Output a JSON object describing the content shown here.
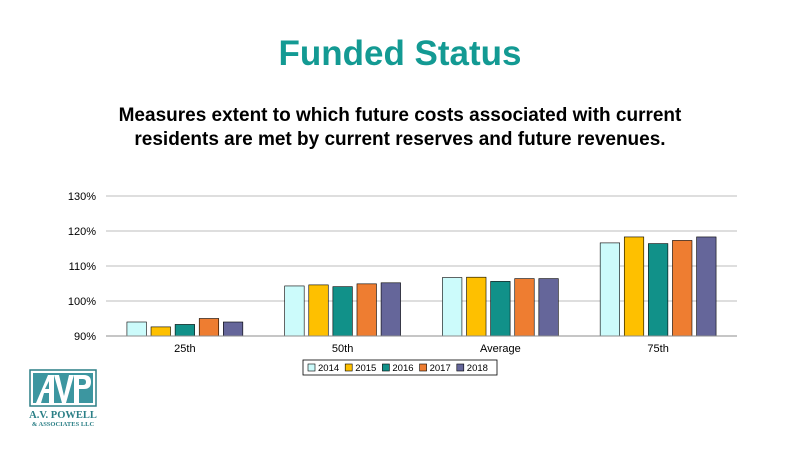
{
  "page": {
    "title": "Funded Status",
    "subtitle_line1": "Measures extent to which future costs associated with current",
    "subtitle_line2": "residents are met by current reserves and future revenues."
  },
  "logo": {
    "line1": "A.V. POWELL",
    "line2": "& ASSOCIATES LLC",
    "color": "#2b7f86"
  },
  "chart_data": {
    "type": "bar",
    "categories": [
      "25th",
      "50th",
      "Average",
      "75th"
    ],
    "series": [
      {
        "name": "2014",
        "color": "#ccfbfb",
        "values": [
          94,
          104.3,
          106.7,
          116.6
        ]
      },
      {
        "name": "2015",
        "color": "#fec000",
        "values": [
          92.6,
          104.6,
          106.8,
          118.3
        ]
      },
      {
        "name": "2016",
        "color": "#119189",
        "values": [
          93.3,
          104.1,
          105.6,
          116.4
        ]
      },
      {
        "name": "2017",
        "color": "#ee7d31",
        "values": [
          95,
          104.9,
          106.4,
          117.3
        ]
      },
      {
        "name": "2018",
        "color": "#65669a",
        "values": [
          94,
          105.2,
          106.4,
          118.3
        ]
      }
    ],
    "yticks": [
      "90%",
      "100%",
      "110%",
      "120%",
      "130%"
    ],
    "ylim": [
      90,
      130
    ],
    "grid": true,
    "legend": "bottom",
    "title": "",
    "xlabel": "",
    "ylabel": ""
  }
}
